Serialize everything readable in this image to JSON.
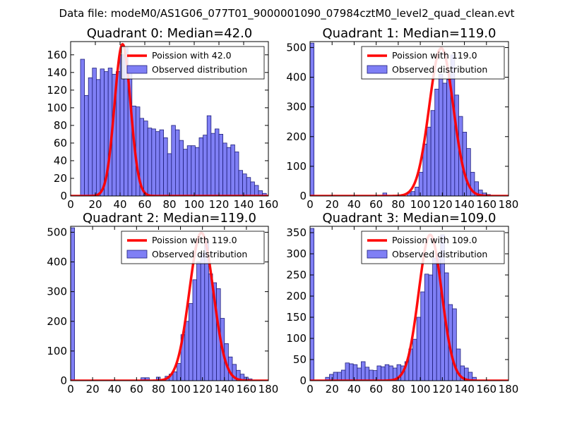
{
  "figure": {
    "title": "Data file: modeM0/AS1G06_077T01_9000001090_07984cztM0_level2_quad_clean.evt"
  },
  "colors": {
    "bar_fill": "#7f7ff5",
    "bar_edge": "#1f1f7a",
    "poisson": "#ff0000",
    "axis": "#000000"
  },
  "chart_data": [
    {
      "type": "bar",
      "title": "Quadrant 0: Median=42.0",
      "xlim": [
        0,
        160
      ],
      "ylim": [
        0,
        175
      ],
      "xticks": [
        0,
        20,
        40,
        60,
        80,
        100,
        120,
        140,
        160
      ],
      "yticks": [
        0,
        20,
        40,
        60,
        80,
        100,
        120,
        140,
        160
      ],
      "bin_width": 3.2,
      "legend": {
        "placement": "top-right",
        "poisson_label": "Poission with 42.0",
        "observed_label": "Observed distribution"
      },
      "poisson_mean": 42.0,
      "poisson_peak": 172,
      "observed": [
        [
          8,
          155
        ],
        [
          11.2,
          114
        ],
        [
          14.4,
          134
        ],
        [
          17.6,
          145
        ],
        [
          20.8,
          132
        ],
        [
          24,
          144
        ],
        [
          27.2,
          141
        ],
        [
          30.4,
          145
        ],
        [
          33.6,
          138
        ],
        [
          36.8,
          141
        ],
        [
          40,
          160
        ],
        [
          43.2,
          168
        ],
        [
          46.4,
          142
        ],
        [
          49.6,
          102
        ],
        [
          52.8,
          101
        ],
        [
          56,
          88
        ],
        [
          59.2,
          85
        ],
        [
          62.4,
          77
        ],
        [
          65.6,
          76
        ],
        [
          68.8,
          73
        ],
        [
          72,
          75
        ],
        [
          75.2,
          66
        ],
        [
          78.4,
          48
        ],
        [
          81.6,
          80
        ],
        [
          84.8,
          75
        ],
        [
          88,
          63
        ],
        [
          91.2,
          53
        ],
        [
          94.4,
          57
        ],
        [
          97.6,
          57
        ],
        [
          100.8,
          55
        ],
        [
          104,
          66
        ],
        [
          107.2,
          69
        ],
        [
          110.4,
          91
        ],
        [
          113.6,
          71
        ],
        [
          116.8,
          76
        ],
        [
          120,
          70
        ],
        [
          123.2,
          60
        ],
        [
          126.4,
          55
        ],
        [
          129.6,
          58
        ],
        [
          132.8,
          50
        ],
        [
          136,
          29
        ],
        [
          139.2,
          25
        ],
        [
          142.4,
          21
        ],
        [
          145.6,
          16
        ],
        [
          148.8,
          12
        ],
        [
          152,
          6
        ],
        [
          155.2,
          3
        ]
      ]
    },
    {
      "type": "bar",
      "title": "Quadrant 1: Median=119.0",
      "xlim": [
        0,
        180
      ],
      "ylim": [
        0,
        520
      ],
      "xticks": [
        0,
        20,
        40,
        60,
        80,
        100,
        120,
        140,
        160,
        180
      ],
      "yticks": [
        0,
        100,
        200,
        300,
        400,
        500
      ],
      "bin_width": 3.6,
      "legend": {
        "placement": "top-right",
        "poisson_label": "Poission with 119.0",
        "observed_label": "Observed distribution"
      },
      "poisson_mean": 119.0,
      "poisson_peak": 498,
      "observed": [
        [
          0,
          515
        ],
        [
          66,
          10
        ],
        [
          88,
          10
        ],
        [
          91.6,
          15
        ],
        [
          95.2,
          30
        ],
        [
          98.8,
          80
        ],
        [
          102.4,
          175
        ],
        [
          106,
          232
        ],
        [
          109.6,
          288
        ],
        [
          113.2,
          360
        ],
        [
          116.8,
          410
        ],
        [
          120.4,
          380
        ],
        [
          124,
          392
        ],
        [
          127.6,
          475
        ],
        [
          131.2,
          340
        ],
        [
          134.8,
          268
        ],
        [
          138.4,
          215
        ],
        [
          142,
          160
        ],
        [
          145.6,
          80
        ],
        [
          149.2,
          48
        ],
        [
          152.8,
          20
        ],
        [
          156.4,
          10
        ],
        [
          160,
          5
        ]
      ]
    },
    {
      "type": "bar",
      "title": "Quadrant 2: Median=119.0",
      "xlim": [
        0,
        180
      ],
      "ylim": [
        0,
        520
      ],
      "xticks": [
        0,
        20,
        40,
        60,
        80,
        100,
        120,
        140,
        160,
        180
      ],
      "yticks": [
        0,
        100,
        200,
        300,
        400,
        500
      ],
      "bin_width": 3.6,
      "legend": {
        "placement": "top-right",
        "poisson_label": "Poission with 119.0",
        "observed_label": "Observed distribution"
      },
      "poisson_mean": 119.0,
      "poisson_peak": 498,
      "observed": [
        [
          0,
          515
        ],
        [
          64,
          10
        ],
        [
          68,
          10
        ],
        [
          78,
          12
        ],
        [
          86,
          15
        ],
        [
          89.6,
          22
        ],
        [
          93.2,
          30
        ],
        [
          96.8,
          58
        ],
        [
          100.4,
          155
        ],
        [
          104,
          200
        ],
        [
          107.6,
          260
        ],
        [
          111.2,
          340
        ],
        [
          114.8,
          400
        ],
        [
          118.4,
          430
        ],
        [
          122,
          470
        ],
        [
          125.6,
          360
        ],
        [
          129.2,
          330
        ],
        [
          132.8,
          310
        ],
        [
          136.4,
          210
        ],
        [
          140,
          125
        ],
        [
          143.6,
          80
        ],
        [
          147.2,
          55
        ],
        [
          150.8,
          35
        ],
        [
          154.4,
          22
        ],
        [
          158,
          12
        ],
        [
          161.6,
          6
        ]
      ]
    },
    {
      "type": "bar",
      "title": "Quadrant 3: Median=109.0",
      "xlim": [
        0,
        180
      ],
      "ylim": [
        0,
        365
      ],
      "xticks": [
        0,
        20,
        40,
        60,
        80,
        100,
        120,
        140,
        160,
        180
      ],
      "yticks": [
        0,
        50,
        100,
        150,
        200,
        250,
        300,
        350
      ],
      "bin_width": 3.6,
      "legend": {
        "placement": "top-right",
        "poisson_label": "Poission with 109.0",
        "observed_label": "Observed distribution"
      },
      "poisson_mean": 109.0,
      "poisson_peak": 345,
      "observed": [
        [
          0,
          360
        ],
        [
          14,
          8
        ],
        [
          17.6,
          15
        ],
        [
          21.2,
          20
        ],
        [
          24.8,
          20
        ],
        [
          28.4,
          25
        ],
        [
          32,
          42
        ],
        [
          35.6,
          40
        ],
        [
          39.2,
          38
        ],
        [
          42.8,
          30
        ],
        [
          46.4,
          45
        ],
        [
          50,
          32
        ],
        [
          53.6,
          25
        ],
        [
          57.2,
          24
        ],
        [
          60.8,
          35
        ],
        [
          64.4,
          33
        ],
        [
          68,
          38
        ],
        [
          71.6,
          35
        ],
        [
          75.2,
          30
        ],
        [
          78.8,
          38
        ],
        [
          82.4,
          35
        ],
        [
          86,
          45
        ],
        [
          89.6,
          75
        ],
        [
          93.2,
          98
        ],
        [
          96.8,
          150
        ],
        [
          100.4,
          210
        ],
        [
          104,
          252
        ],
        [
          107.6,
          250
        ],
        [
          111.2,
          290
        ],
        [
          114.8,
          300
        ],
        [
          118.4,
          345
        ],
        [
          122,
          255
        ],
        [
          125.6,
          180
        ],
        [
          129.2,
          170
        ],
        [
          132.8,
          75
        ],
        [
          136.4,
          35
        ],
        [
          140,
          30
        ],
        [
          143.6,
          20
        ],
        [
          147.2,
          8
        ]
      ]
    }
  ]
}
